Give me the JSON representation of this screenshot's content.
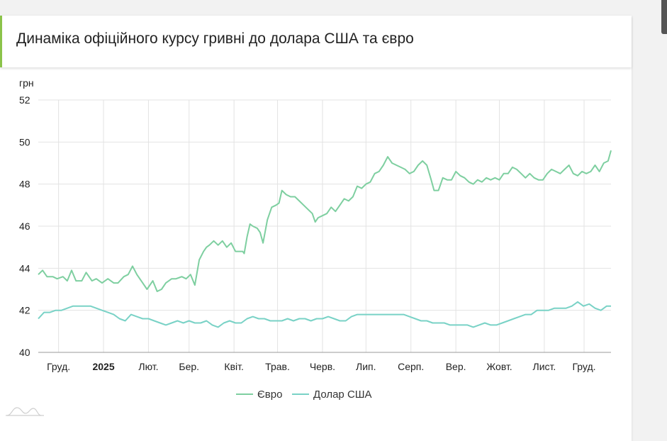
{
  "header": {
    "title": "Динаміка офіційного курсу гривні до долара США та євро"
  },
  "colors": {
    "eur": "#7ecfa0",
    "usd": "#79d2c6",
    "grid": "#e3e3e3",
    "accent": "#8bc34a"
  },
  "icons": [
    "chart-logo-icon"
  ],
  "chart_data": {
    "type": "line",
    "title": "Динаміка офіційного курсу гривні до долара США та євро",
    "ylabel": "грн",
    "xlabel": "",
    "ylim": [
      40,
      52
    ],
    "yticks": [
      40,
      42,
      44,
      46,
      48,
      50,
      52
    ],
    "grid": true,
    "legend_position": "bottom-center",
    "xticks": [
      {
        "label": "Груд.",
        "date": "2024-12-01",
        "bold": false
      },
      {
        "label": "2025",
        "date": "2025-01-01",
        "bold": true
      },
      {
        "label": "Лют.",
        "date": "2025-02-01",
        "bold": false
      },
      {
        "label": "Бер.",
        "date": "2025-03-01",
        "bold": false
      },
      {
        "label": "Квіт.",
        "date": "2025-04-01",
        "bold": false
      },
      {
        "label": "Трав.",
        "date": "2025-05-01",
        "bold": false
      },
      {
        "label": "Черв.",
        "date": "2025-06-01",
        "bold": false
      },
      {
        "label": "Лип.",
        "date": "2025-07-01",
        "bold": false
      },
      {
        "label": "Серп.",
        "date": "2025-08-01",
        "bold": false
      },
      {
        "label": "Вер.",
        "date": "2025-09-01",
        "bold": false
      },
      {
        "label": "Жовт.",
        "date": "2025-10-01",
        "bold": false
      },
      {
        "label": "Лист.",
        "date": "2025-11-01",
        "bold": false
      },
      {
        "label": "Груд.",
        "date": "2025-12-01",
        "bold": false
      }
    ],
    "x_range": [
      "2024-11-17",
      "2025-12-17"
    ],
    "series": [
      {
        "name": "Євро",
        "key": "eur",
        "points": [
          [
            "2024-11-17",
            43.7
          ],
          [
            "2024-11-20",
            43.9
          ],
          [
            "2024-11-23",
            43.6
          ],
          [
            "2024-11-27",
            43.6
          ],
          [
            "2024-11-30",
            43.5
          ],
          [
            "2024-12-04",
            43.6
          ],
          [
            "2024-12-07",
            43.4
          ],
          [
            "2024-12-10",
            43.9
          ],
          [
            "2024-12-13",
            43.4
          ],
          [
            "2024-12-17",
            43.4
          ],
          [
            "2024-12-20",
            43.8
          ],
          [
            "2024-12-24",
            43.4
          ],
          [
            "2024-12-27",
            43.5
          ],
          [
            "2024-12-31",
            43.3
          ],
          [
            "2025-01-04",
            43.5
          ],
          [
            "2025-01-08",
            43.3
          ],
          [
            "2025-01-11",
            43.3
          ],
          [
            "2025-01-15",
            43.6
          ],
          [
            "2025-01-18",
            43.7
          ],
          [
            "2025-01-21",
            44.1
          ],
          [
            "2025-01-24",
            43.7
          ],
          [
            "2025-01-28",
            43.3
          ],
          [
            "2025-01-31",
            43.0
          ],
          [
            "2025-02-04",
            43.4
          ],
          [
            "2025-02-07",
            42.9
          ],
          [
            "2025-02-10",
            43.0
          ],
          [
            "2025-02-13",
            43.3
          ],
          [
            "2025-02-17",
            43.5
          ],
          [
            "2025-02-20",
            43.5
          ],
          [
            "2025-02-24",
            43.6
          ],
          [
            "2025-02-27",
            43.5
          ],
          [
            "2025-03-02",
            43.7
          ],
          [
            "2025-03-05",
            43.2
          ],
          [
            "2025-03-08",
            44.4
          ],
          [
            "2025-03-11",
            44.8
          ],
          [
            "2025-03-13",
            45.0
          ],
          [
            "2025-03-15",
            45.1
          ],
          [
            "2025-03-18",
            45.3
          ],
          [
            "2025-03-21",
            45.1
          ],
          [
            "2025-03-24",
            45.3
          ],
          [
            "2025-03-27",
            45.0
          ],
          [
            "2025-03-30",
            45.2
          ],
          [
            "2025-04-02",
            44.8
          ],
          [
            "2025-04-05",
            44.8
          ],
          [
            "2025-04-07",
            44.8
          ],
          [
            "2025-04-08",
            44.7
          ],
          [
            "2025-04-10",
            45.5
          ],
          [
            "2025-04-12",
            46.1
          ],
          [
            "2025-04-14",
            46.0
          ],
          [
            "2025-04-17",
            45.9
          ],
          [
            "2025-04-19",
            45.7
          ],
          [
            "2025-04-21",
            45.2
          ],
          [
            "2025-04-24",
            46.3
          ],
          [
            "2025-04-27",
            46.9
          ],
          [
            "2025-04-30",
            47.0
          ],
          [
            "2025-05-02",
            47.1
          ],
          [
            "2025-05-04",
            47.7
          ],
          [
            "2025-05-07",
            47.5
          ],
          [
            "2025-05-10",
            47.4
          ],
          [
            "2025-05-13",
            47.4
          ],
          [
            "2025-05-16",
            47.2
          ],
          [
            "2025-05-19",
            47.0
          ],
          [
            "2025-05-22",
            46.8
          ],
          [
            "2025-05-25",
            46.6
          ],
          [
            "2025-05-27",
            46.2
          ],
          [
            "2025-05-29",
            46.4
          ],
          [
            "2025-06-01",
            46.5
          ],
          [
            "2025-06-04",
            46.6
          ],
          [
            "2025-06-07",
            46.9
          ],
          [
            "2025-06-10",
            46.7
          ],
          [
            "2025-06-13",
            47.0
          ],
          [
            "2025-06-16",
            47.3
          ],
          [
            "2025-06-19",
            47.2
          ],
          [
            "2025-06-22",
            47.4
          ],
          [
            "2025-06-25",
            47.9
          ],
          [
            "2025-06-28",
            47.8
          ],
          [
            "2025-07-01",
            48.0
          ],
          [
            "2025-07-04",
            48.1
          ],
          [
            "2025-07-07",
            48.5
          ],
          [
            "2025-07-10",
            48.6
          ],
          [
            "2025-07-13",
            48.9
          ],
          [
            "2025-07-16",
            49.3
          ],
          [
            "2025-07-19",
            49.0
          ],
          [
            "2025-07-22",
            48.9
          ],
          [
            "2025-07-25",
            48.8
          ],
          [
            "2025-07-28",
            48.7
          ],
          [
            "2025-07-31",
            48.5
          ],
          [
            "2025-08-03",
            48.6
          ],
          [
            "2025-08-06",
            48.9
          ],
          [
            "2025-08-09",
            49.1
          ],
          [
            "2025-08-12",
            48.9
          ],
          [
            "2025-08-15",
            48.2
          ],
          [
            "2025-08-17",
            47.7
          ],
          [
            "2025-08-20",
            47.7
          ],
          [
            "2025-08-23",
            48.3
          ],
          [
            "2025-08-26",
            48.2
          ],
          [
            "2025-08-29",
            48.2
          ],
          [
            "2025-09-01",
            48.6
          ],
          [
            "2025-09-04",
            48.4
          ],
          [
            "2025-09-07",
            48.3
          ],
          [
            "2025-09-10",
            48.1
          ],
          [
            "2025-09-13",
            48.0
          ],
          [
            "2025-09-16",
            48.2
          ],
          [
            "2025-09-19",
            48.1
          ],
          [
            "2025-09-22",
            48.3
          ],
          [
            "2025-09-25",
            48.2
          ],
          [
            "2025-09-28",
            48.3
          ],
          [
            "2025-10-01",
            48.2
          ],
          [
            "2025-10-04",
            48.5
          ],
          [
            "2025-10-07",
            48.5
          ],
          [
            "2025-10-10",
            48.8
          ],
          [
            "2025-10-13",
            48.7
          ],
          [
            "2025-10-16",
            48.5
          ],
          [
            "2025-10-19",
            48.3
          ],
          [
            "2025-10-22",
            48.5
          ],
          [
            "2025-10-25",
            48.3
          ],
          [
            "2025-10-28",
            48.2
          ],
          [
            "2025-10-31",
            48.2
          ],
          [
            "2025-11-03",
            48.5
          ],
          [
            "2025-11-06",
            48.7
          ],
          [
            "2025-11-09",
            48.6
          ],
          [
            "2025-11-12",
            48.5
          ],
          [
            "2025-11-15",
            48.7
          ],
          [
            "2025-11-18",
            48.9
          ],
          [
            "2025-11-21",
            48.5
          ],
          [
            "2025-11-24",
            48.4
          ],
          [
            "2025-11-27",
            48.6
          ],
          [
            "2025-11-30",
            48.5
          ],
          [
            "2025-12-03",
            48.6
          ],
          [
            "2025-12-06",
            48.9
          ],
          [
            "2025-12-09",
            48.6
          ],
          [
            "2025-12-12",
            49.0
          ],
          [
            "2025-12-15",
            49.1
          ],
          [
            "2025-12-17",
            49.6
          ]
        ]
      },
      {
        "name": "Долар США",
        "key": "usd",
        "points": [
          [
            "2024-11-17",
            41.6
          ],
          [
            "2024-11-21",
            41.9
          ],
          [
            "2024-11-25",
            41.9
          ],
          [
            "2024-11-29",
            42.0
          ],
          [
            "2024-12-03",
            42.0
          ],
          [
            "2024-12-07",
            42.1
          ],
          [
            "2024-12-11",
            42.2
          ],
          [
            "2024-12-15",
            42.2
          ],
          [
            "2024-12-19",
            42.2
          ],
          [
            "2024-12-23",
            42.2
          ],
          [
            "2024-12-27",
            42.1
          ],
          [
            "2024-12-31",
            42.0
          ],
          [
            "2025-01-04",
            41.9
          ],
          [
            "2025-01-08",
            41.8
          ],
          [
            "2025-01-12",
            41.6
          ],
          [
            "2025-01-16",
            41.5
          ],
          [
            "2025-01-20",
            41.8
          ],
          [
            "2025-01-24",
            41.7
          ],
          [
            "2025-01-28",
            41.6
          ],
          [
            "2025-02-01",
            41.6
          ],
          [
            "2025-02-05",
            41.5
          ],
          [
            "2025-02-09",
            41.4
          ],
          [
            "2025-02-13",
            41.3
          ],
          [
            "2025-02-17",
            41.4
          ],
          [
            "2025-02-21",
            41.5
          ],
          [
            "2025-02-25",
            41.4
          ],
          [
            "2025-03-01",
            41.5
          ],
          [
            "2025-03-05",
            41.4
          ],
          [
            "2025-03-09",
            41.4
          ],
          [
            "2025-03-13",
            41.5
          ],
          [
            "2025-03-17",
            41.3
          ],
          [
            "2025-03-21",
            41.2
          ],
          [
            "2025-03-25",
            41.4
          ],
          [
            "2025-03-29",
            41.5
          ],
          [
            "2025-04-02",
            41.4
          ],
          [
            "2025-04-06",
            41.4
          ],
          [
            "2025-04-10",
            41.6
          ],
          [
            "2025-04-14",
            41.7
          ],
          [
            "2025-04-18",
            41.6
          ],
          [
            "2025-04-22",
            41.6
          ],
          [
            "2025-04-26",
            41.5
          ],
          [
            "2025-04-30",
            41.5
          ],
          [
            "2025-05-04",
            41.5
          ],
          [
            "2025-05-08",
            41.6
          ],
          [
            "2025-05-12",
            41.5
          ],
          [
            "2025-05-16",
            41.6
          ],
          [
            "2025-05-20",
            41.6
          ],
          [
            "2025-05-24",
            41.5
          ],
          [
            "2025-05-28",
            41.6
          ],
          [
            "2025-06-01",
            41.6
          ],
          [
            "2025-06-05",
            41.7
          ],
          [
            "2025-06-09",
            41.6
          ],
          [
            "2025-06-13",
            41.5
          ],
          [
            "2025-06-17",
            41.5
          ],
          [
            "2025-06-21",
            41.7
          ],
          [
            "2025-06-25",
            41.8
          ],
          [
            "2025-06-29",
            41.8
          ],
          [
            "2025-07-03",
            41.8
          ],
          [
            "2025-07-07",
            41.8
          ],
          [
            "2025-07-11",
            41.8
          ],
          [
            "2025-07-15",
            41.8
          ],
          [
            "2025-07-19",
            41.8
          ],
          [
            "2025-07-23",
            41.8
          ],
          [
            "2025-07-27",
            41.8
          ],
          [
            "2025-07-31",
            41.7
          ],
          [
            "2025-08-04",
            41.6
          ],
          [
            "2025-08-08",
            41.5
          ],
          [
            "2025-08-12",
            41.5
          ],
          [
            "2025-08-16",
            41.4
          ],
          [
            "2025-08-20",
            41.4
          ],
          [
            "2025-08-24",
            41.4
          ],
          [
            "2025-08-28",
            41.3
          ],
          [
            "2025-09-01",
            41.3
          ],
          [
            "2025-09-05",
            41.3
          ],
          [
            "2025-09-09",
            41.3
          ],
          [
            "2025-09-13",
            41.2
          ],
          [
            "2025-09-17",
            41.3
          ],
          [
            "2025-09-21",
            41.4
          ],
          [
            "2025-09-25",
            41.3
          ],
          [
            "2025-09-29",
            41.3
          ],
          [
            "2025-10-03",
            41.4
          ],
          [
            "2025-10-07",
            41.5
          ],
          [
            "2025-10-11",
            41.6
          ],
          [
            "2025-10-15",
            41.7
          ],
          [
            "2025-10-19",
            41.8
          ],
          [
            "2025-10-23",
            41.8
          ],
          [
            "2025-10-27",
            42.0
          ],
          [
            "2025-10-31",
            42.0
          ],
          [
            "2025-11-04",
            42.0
          ],
          [
            "2025-11-08",
            42.1
          ],
          [
            "2025-11-12",
            42.1
          ],
          [
            "2025-11-16",
            42.1
          ],
          [
            "2025-11-20",
            42.2
          ],
          [
            "2025-11-24",
            42.4
          ],
          [
            "2025-11-28",
            42.2
          ],
          [
            "2025-12-02",
            42.3
          ],
          [
            "2025-12-06",
            42.1
          ],
          [
            "2025-12-10",
            42.0
          ],
          [
            "2025-12-14",
            42.2
          ],
          [
            "2025-12-17",
            42.2
          ]
        ]
      }
    ]
  }
}
